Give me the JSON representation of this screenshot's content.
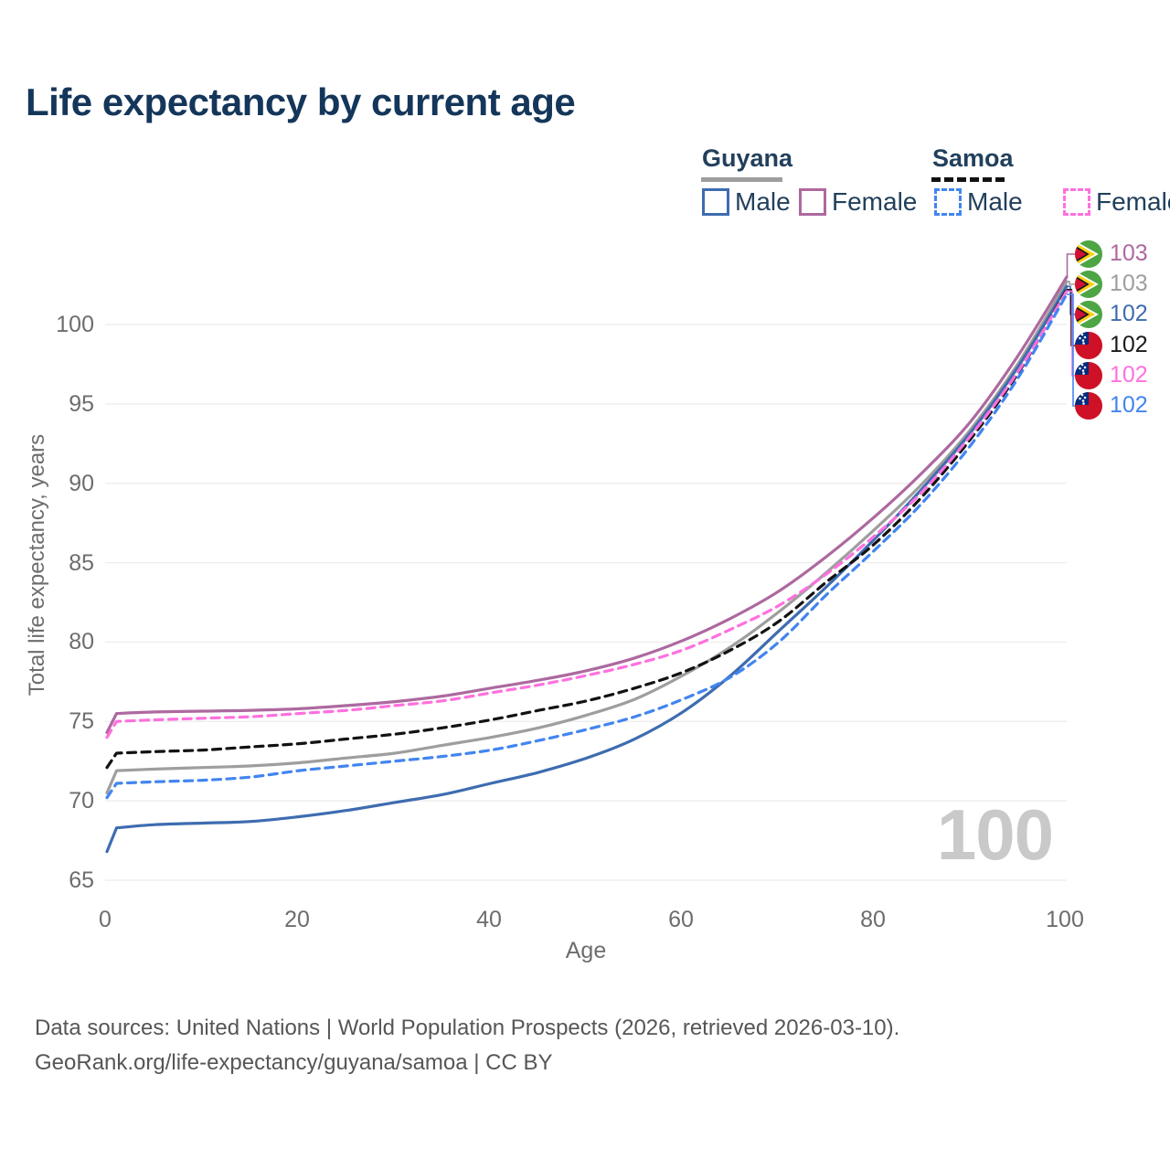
{
  "title": "Life expectancy by current age",
  "legend": {
    "groups": [
      {
        "label": "Guyana",
        "line_style": "solid",
        "header_line_color": "#9e9e9e",
        "items": [
          {
            "label": "Male",
            "color": "#3e6cb0",
            "dashed": false
          },
          {
            "label": "Female",
            "color": "#ad699f",
            "dashed": false
          }
        ]
      },
      {
        "label": "Samoa",
        "line_style": "dashed",
        "header_line_color": "#121212",
        "items": [
          {
            "label": "Male",
            "color": "#4285f0",
            "dashed": true
          },
          {
            "label": "Female",
            "color": "#ff70df",
            "dashed": true
          }
        ]
      }
    ]
  },
  "axes": {
    "x": {
      "title": "Age",
      "ticks": [
        "0",
        "20",
        "40",
        "60",
        "80",
        "100"
      ]
    },
    "y": {
      "title": "Total life expectancy, years",
      "ticks": [
        "65",
        "70",
        "75",
        "80",
        "85",
        "90",
        "95",
        "100"
      ]
    }
  },
  "watermark": "100",
  "end_labels": [
    {
      "value": "103",
      "flag": "guyana",
      "color": "#ad699f"
    },
    {
      "value": "103",
      "flag": "guyana",
      "color": "#9e9e9e"
    },
    {
      "value": "102",
      "flag": "guyana",
      "color": "#3e6cb0"
    },
    {
      "value": "102",
      "flag": "samoa",
      "color": "#1a1a1a"
    },
    {
      "value": "102",
      "flag": "samoa",
      "color": "#ff70df"
    },
    {
      "value": "102",
      "flag": "samoa",
      "color": "#4285f0"
    }
  ],
  "footer": {
    "line1": "Data sources: United Nations | World Population Prospects (2026, retrieved 2026-03-10).",
    "line2": "GeoRank.org/life-expectancy/guyana/samoa | CC BY"
  },
  "chart_data": {
    "type": "line",
    "title": "Life expectancy by current age",
    "xlabel": "Age",
    "ylabel": "Total life expectancy, years",
    "xlim": [
      0,
      100
    ],
    "ylim": [
      65,
      103.5
    ],
    "grid": "horizontal",
    "x": [
      0,
      1,
      5,
      10,
      15,
      20,
      25,
      30,
      35,
      40,
      45,
      50,
      55,
      60,
      65,
      70,
      75,
      80,
      85,
      90,
      95,
      100
    ],
    "series": [
      {
        "name": "Guyana Female",
        "color": "#ad699f",
        "dashed": false,
        "values": [
          74.3,
          75.5,
          75.6,
          75.65,
          75.7,
          75.8,
          76.0,
          76.25,
          76.6,
          77.1,
          77.6,
          78.2,
          79.0,
          80.1,
          81.5,
          83.2,
          85.4,
          87.9,
          90.7,
          93.9,
          98.1,
          103.0
        ]
      },
      {
        "name": "Guyana",
        "color": "#9e9e9e",
        "dashed": false,
        "values": [
          70.5,
          71.9,
          72.0,
          72.1,
          72.2,
          72.4,
          72.7,
          73.0,
          73.5,
          74.0,
          74.6,
          75.4,
          76.4,
          77.9,
          79.7,
          81.9,
          84.4,
          87.1,
          90.0,
          93.4,
          97.6,
          102.7
        ]
      },
      {
        "name": "Guyana Male",
        "color": "#3e6cb0",
        "dashed": false,
        "values": [
          66.8,
          68.3,
          68.5,
          68.6,
          68.7,
          69.0,
          69.4,
          69.9,
          70.4,
          71.1,
          71.8,
          72.7,
          73.9,
          75.6,
          77.9,
          80.7,
          83.5,
          86.5,
          89.7,
          93.2,
          97.4,
          102.4
        ]
      },
      {
        "name": "Samoa",
        "color": "#121212",
        "dashed": true,
        "values": [
          72.1,
          73.0,
          73.1,
          73.2,
          73.4,
          73.6,
          73.9,
          74.2,
          74.6,
          75.1,
          75.7,
          76.3,
          77.1,
          78.1,
          79.5,
          81.3,
          83.8,
          86.2,
          89.2,
          92.8,
          97.0,
          102.2
        ]
      },
      {
        "name": "Samoa Female",
        "color": "#ff70df",
        "dashed": true,
        "values": [
          74.0,
          75.0,
          75.1,
          75.2,
          75.3,
          75.5,
          75.7,
          76.0,
          76.3,
          76.8,
          77.3,
          77.9,
          78.6,
          79.5,
          80.8,
          82.3,
          84.3,
          86.7,
          89.5,
          93.0,
          97.1,
          102.1
        ]
      },
      {
        "name": "Samoa Male",
        "color": "#4285f0",
        "dashed": true,
        "values": [
          70.2,
          71.1,
          71.2,
          71.3,
          71.5,
          71.9,
          72.2,
          72.5,
          72.8,
          73.2,
          73.8,
          74.5,
          75.3,
          76.4,
          77.8,
          80.0,
          83.0,
          85.8,
          88.8,
          92.4,
          96.7,
          101.9
        ]
      }
    ]
  }
}
